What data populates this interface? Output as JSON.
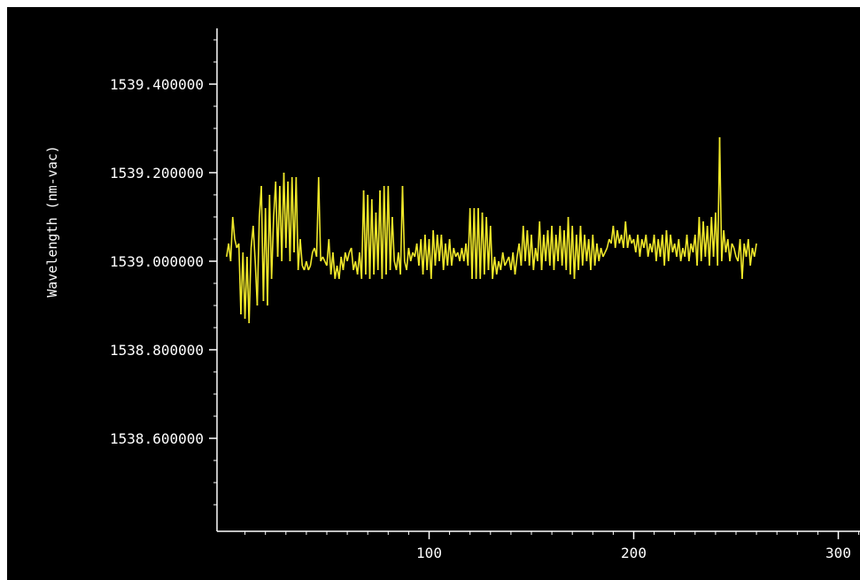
{
  "chart_data": {
    "type": "line",
    "title": "",
    "xlabel": "",
    "ylabel": "Wavelength (nm-vac)",
    "xlim": [
      1,
      312
    ],
    "ylim": [
      1538.42,
      1539.52
    ],
    "x_ticks": [
      100,
      200,
      300
    ],
    "x_tick_labels": [
      "100",
      "200",
      "300"
    ],
    "y_ticks": [
      1538.6,
      1538.8,
      1539.0,
      1539.2,
      1539.4
    ],
    "y_tick_labels": [
      "1538.600000",
      "1538.800000",
      "1539.000000",
      "1539.200000",
      "1539.400000"
    ],
    "grid": false,
    "background": "#000000",
    "axis_color": "#ffffff",
    "series": [
      {
        "color": "#f0e82a",
        "x_start": 1,
        "x_step": 1,
        "values": [
          1539.01,
          1539.04,
          1539.0,
          1539.1,
          1539.05,
          1539.03,
          1539.04,
          1538.88,
          1539.02,
          1538.87,
          1539.01,
          1538.86,
          1539.03,
          1539.08,
          1539.0,
          1538.9,
          1539.1,
          1539.17,
          1538.91,
          1539.12,
          1538.9,
          1539.15,
          1538.96,
          1539.1,
          1539.18,
          1539.01,
          1539.17,
          1539.0,
          1539.2,
          1539.03,
          1539.18,
          1539.0,
          1539.19,
          1539.02,
          1539.19,
          1538.98,
          1539.05,
          1538.99,
          1538.98,
          1539.0,
          1538.98,
          1538.99,
          1539.02,
          1539.03,
          1539.01,
          1539.19,
          1539.0,
          1539.01,
          1539.0,
          1538.99,
          1539.05,
          1538.97,
          1539.02,
          1538.96,
          1538.99,
          1538.96,
          1539.01,
          1538.98,
          1539.02,
          1539.0,
          1539.02,
          1539.03,
          1538.98,
          1539.0,
          1538.97,
          1539.02,
          1538.96,
          1539.16,
          1538.97,
          1539.15,
          1538.96,
          1539.14,
          1538.97,
          1539.11,
          1538.98,
          1539.16,
          1538.96,
          1539.17,
          1538.97,
          1539.17,
          1538.98,
          1539.1,
          1539.0,
          1538.98,
          1539.02,
          1538.97,
          1539.17,
          1539.0,
          1538.98,
          1539.03,
          1539.0,
          1539.02,
          1539.01,
          1539.04,
          1538.99,
          1539.05,
          1538.97,
          1539.06,
          1538.98,
          1539.05,
          1538.96,
          1539.07,
          1538.99,
          1539.06,
          1539.0,
          1539.06,
          1538.98,
          1539.04,
          1538.99,
          1539.05,
          1538.99,
          1539.03,
          1539.01,
          1539.02,
          1539.0,
          1539.03,
          1539.0,
          1539.04,
          1538.99,
          1539.12,
          1538.96,
          1539.12,
          1538.96,
          1539.12,
          1538.96,
          1539.11,
          1538.97,
          1539.1,
          1538.98,
          1539.08,
          1538.96,
          1539.01,
          1538.97,
          1539.0,
          1538.98,
          1539.02,
          1538.99,
          1539.0,
          1539.01,
          1538.98,
          1539.02,
          1538.97,
          1539.01,
          1539.04,
          1538.99,
          1539.08,
          1539.0,
          1539.07,
          1538.99,
          1539.06,
          1538.98,
          1539.03,
          1539.0,
          1539.09,
          1538.98,
          1539.06,
          1539.0,
          1539.07,
          1538.99,
          1539.08,
          1538.98,
          1539.06,
          1539.0,
          1539.08,
          1538.99,
          1539.07,
          1538.98,
          1539.1,
          1538.97,
          1539.08,
          1538.96,
          1539.06,
          1538.98,
          1539.08,
          1538.99,
          1539.06,
          1539.0,
          1539.05,
          1538.98,
          1539.06,
          1538.99,
          1539.04,
          1539.0,
          1539.03,
          1539.01,
          1539.02,
          1539.03,
          1539.05,
          1539.04,
          1539.08,
          1539.03,
          1539.07,
          1539.04,
          1539.06,
          1539.03,
          1539.09,
          1539.03,
          1539.06,
          1539.04,
          1539.05,
          1539.02,
          1539.06,
          1539.01,
          1539.05,
          1539.03,
          1539.06,
          1539.01,
          1539.04,
          1539.02,
          1539.06,
          1539.0,
          1539.05,
          1539.01,
          1539.06,
          1538.99,
          1539.07,
          1539.0,
          1539.06,
          1539.02,
          1539.04,
          1539.01,
          1539.05,
          1539.0,
          1539.03,
          1539.01,
          1539.06,
          1539.0,
          1539.04,
          1539.02,
          1539.06,
          1538.99,
          1539.1,
          1539.0,
          1539.09,
          1539.01,
          1539.08,
          1538.99,
          1539.1,
          1539.01,
          1539.11,
          1538.99,
          1539.28,
          1539.0,
          1539.07,
          1539.02,
          1539.05,
          1539.0,
          1539.04,
          1539.03,
          1539.01,
          1539.0,
          1539.05,
          1538.96,
          1539.04,
          1539.01,
          1539.05,
          1538.99,
          1539.03,
          1539.01,
          1539.04
        ]
      }
    ]
  }
}
